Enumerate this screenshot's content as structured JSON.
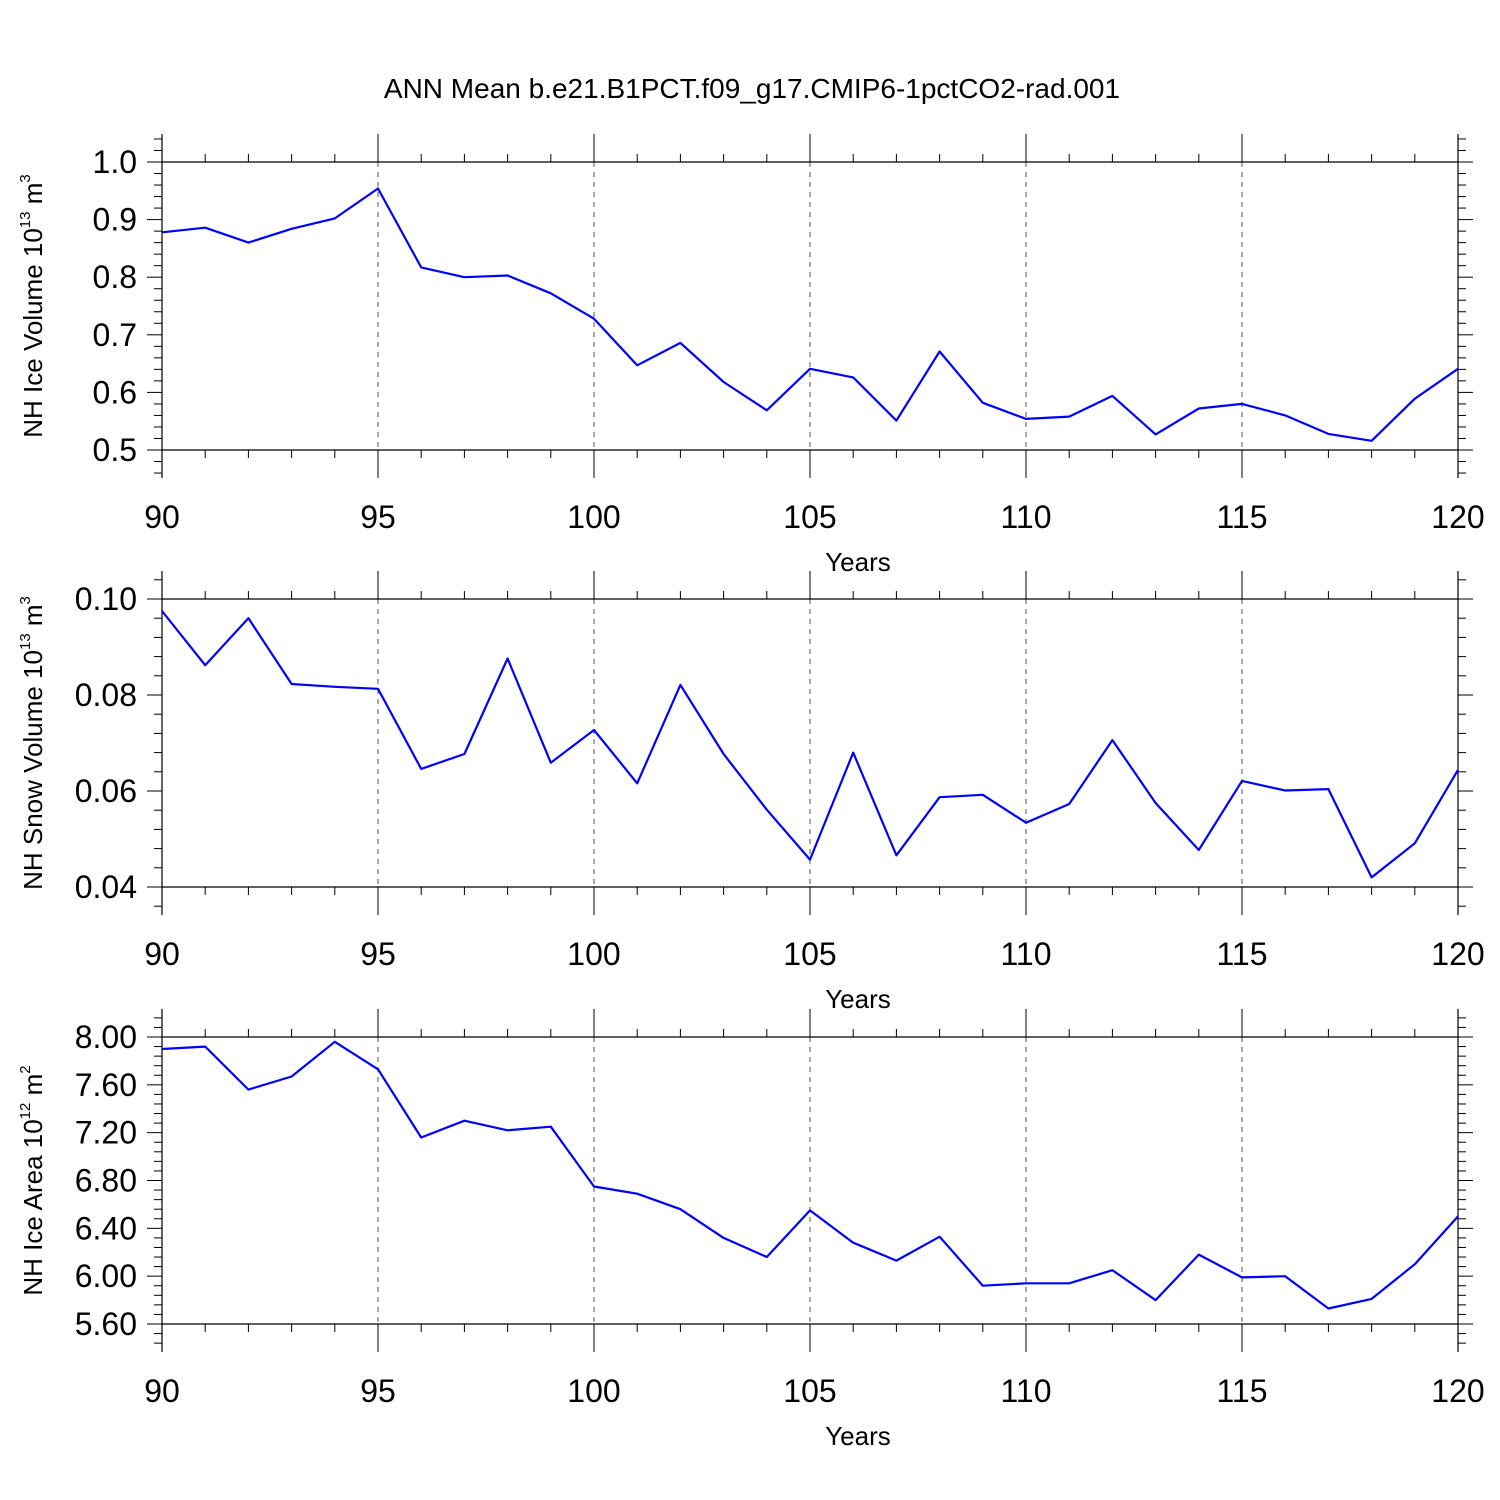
{
  "title": "ANN Mean b.e21.B1PCT.f09_g17.CMIP6-1pctCO2-rad.001",
  "colors": {
    "series": "#0000ff",
    "grid": "#555555",
    "axis": "#000000"
  },
  "chart_data": [
    {
      "type": "line",
      "ylabel": {
        "main": "NH Ice Volume 10",
        "sup": "13",
        "unit": " m",
        "unit_sup": "3"
      },
      "xlabel": "Years",
      "xlim": [
        90,
        120
      ],
      "ylim": [
        0.5,
        1.0
      ],
      "xticks": [
        90,
        95,
        100,
        105,
        110,
        115,
        120
      ],
      "xtick_labels": [
        "90",
        "95",
        "100",
        "105",
        "110",
        "115",
        "120"
      ],
      "yticks": [
        0.5,
        0.6,
        0.7,
        0.8,
        0.9,
        1.0
      ],
      "ytick_labels": [
        "0.5",
        "0.6",
        "0.7",
        "0.8",
        "0.9",
        "1.0"
      ],
      "grid": "vertical dashed at major x ticks",
      "x": [
        90,
        91,
        92,
        93,
        94,
        95,
        96,
        97,
        98,
        99,
        100,
        101,
        102,
        103,
        104,
        105,
        106,
        107,
        108,
        109,
        110,
        111,
        112,
        113,
        114,
        115,
        116,
        117,
        118,
        119,
        120
      ],
      "values": [
        0.878,
        0.886,
        0.86,
        0.884,
        0.902,
        0.954,
        0.817,
        0.8,
        0.803,
        0.772,
        0.728,
        0.647,
        0.686,
        0.618,
        0.569,
        0.641,
        0.626,
        0.551,
        0.671,
        0.582,
        0.554,
        0.558,
        0.594,
        0.527,
        0.572,
        0.58,
        0.56,
        0.528,
        0.516,
        0.589,
        0.641
      ]
    },
    {
      "type": "line",
      "ylabel": {
        "main": "NH Snow Volume 10",
        "sup": "13",
        "unit": " m",
        "unit_sup": "3"
      },
      "xlabel": "Years",
      "xlim": [
        90,
        120
      ],
      "ylim": [
        0.04,
        0.1
      ],
      "xticks": [
        90,
        95,
        100,
        105,
        110,
        115,
        120
      ],
      "xtick_labels": [
        "90",
        "95",
        "100",
        "105",
        "110",
        "115",
        "120"
      ],
      "yticks": [
        0.04,
        0.06,
        0.08,
        0.1
      ],
      "ytick_labels": [
        "0.04",
        "0.06",
        "0.08",
        "0.10"
      ],
      "grid": "vertical dashed at major x ticks",
      "x": [
        90,
        91,
        92,
        93,
        94,
        95,
        96,
        97,
        98,
        99,
        100,
        101,
        102,
        103,
        104,
        105,
        106,
        107,
        108,
        109,
        110,
        111,
        112,
        113,
        114,
        115,
        116,
        117,
        118,
        119,
        120
      ],
      "values": [
        0.0975,
        0.0862,
        0.096,
        0.0823,
        0.0817,
        0.0813,
        0.0646,
        0.0677,
        0.0876,
        0.0659,
        0.0727,
        0.0616,
        0.0821,
        0.0677,
        0.0561,
        0.0457,
        0.068,
        0.0466,
        0.0587,
        0.0592,
        0.0534,
        0.0573,
        0.0706,
        0.0575,
        0.0477,
        0.0621,
        0.0601,
        0.0604,
        0.042,
        0.0491,
        0.0644
      ]
    },
    {
      "type": "line",
      "ylabel": {
        "main": "NH Ice Area 10",
        "sup": "12",
        "unit": " m",
        "unit_sup": "2"
      },
      "xlabel": "Years",
      "xlim": [
        90,
        120
      ],
      "ylim": [
        5.6,
        8.0
      ],
      "xticks": [
        90,
        95,
        100,
        105,
        110,
        115,
        120
      ],
      "xtick_labels": [
        "90",
        "95",
        "100",
        "105",
        "110",
        "115",
        "120"
      ],
      "yticks": [
        5.6,
        6.0,
        6.4,
        6.8,
        7.2,
        7.6,
        8.0
      ],
      "ytick_labels": [
        "5.60",
        "6.00",
        "6.40",
        "6.80",
        "7.20",
        "7.60",
        "8.00"
      ],
      "grid": "vertical dashed at major x ticks",
      "x": [
        90,
        91,
        92,
        93,
        94,
        95,
        96,
        97,
        98,
        99,
        100,
        101,
        102,
        103,
        104,
        105,
        106,
        107,
        108,
        109,
        110,
        111,
        112,
        113,
        114,
        115,
        116,
        117,
        118,
        119,
        120
      ],
      "values": [
        7.9,
        7.92,
        7.56,
        7.67,
        7.96,
        7.73,
        7.16,
        7.3,
        7.22,
        7.25,
        6.75,
        6.69,
        6.56,
        6.32,
        6.16,
        6.55,
        6.28,
        6.13,
        6.33,
        5.92,
        5.94,
        5.94,
        6.05,
        5.8,
        6.18,
        5.99,
        6.0,
        5.73,
        5.81,
        6.1,
        6.5
      ]
    }
  ]
}
